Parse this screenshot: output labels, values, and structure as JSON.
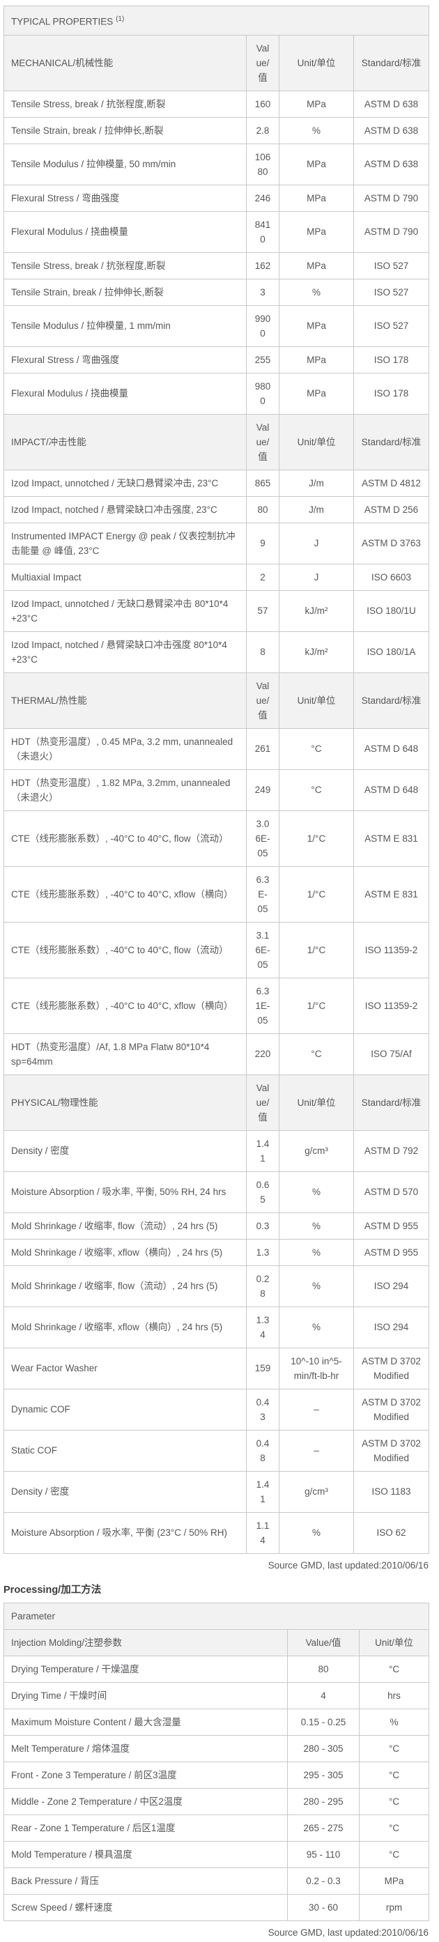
{
  "typical_properties": {
    "title": "TYPICAL PROPERTIES",
    "title_superscript": "(1)",
    "columns": [
      "Value/值",
      "Unit/单位",
      "Standard/标准"
    ],
    "sections": [
      {
        "name": "MECHANICAL/机械性能",
        "rows": [
          [
            "Tensile Stress, break / 抗张程度,断裂",
            "160",
            "MPa",
            "ASTM D 638"
          ],
          [
            "Tensile Strain, break / 拉伸伸长,断裂",
            "2.8",
            "%",
            "ASTM D 638"
          ],
          [
            "Tensile Modulus / 拉伸模量, 50 mm/min",
            "10680",
            "MPa",
            "ASTM D 638"
          ],
          [
            "Flexural Stress / 弯曲强度",
            "246",
            "MPa",
            "ASTM D 790"
          ],
          [
            "Flexural Modulus / 挠曲模量",
            "8410",
            "MPa",
            "ASTM D 790"
          ],
          [
            "Tensile Stress, break / 抗张程度,断裂",
            "162",
            "MPa",
            "ISO 527"
          ],
          [
            "Tensile Strain, break / 拉伸伸长,断裂",
            "3",
            "%",
            "ISO 527"
          ],
          [
            "Tensile Modulus / 拉伸模量, 1 mm/min",
            "9900",
            "MPa",
            "ISO 527"
          ],
          [
            "Flexural Stress / 弯曲强度",
            "255",
            "MPa",
            "ISO 178"
          ],
          [
            "Flexural Modulus / 挠曲模量",
            "9800",
            "MPa",
            "ISO 178"
          ]
        ]
      },
      {
        "name": "IMPACT/冲击性能",
        "rows": [
          [
            "Izod Impact, unnotched / 无缺口悬臂梁冲击, 23°C",
            "865",
            "J/m",
            "ASTM D 4812"
          ],
          [
            "Izod Impact, notched / 悬臂梁缺口冲击强度, 23°C",
            "80",
            "J/m",
            "ASTM D 256"
          ],
          [
            "Instrumented IMPACT Energy @ peak / 仪表控制抗冲击能量 @ 峰值, 23°C",
            "9",
            "J",
            "ASTM D 3763"
          ],
          [
            "Multiaxial Impact",
            "2",
            "J",
            "ISO 6603"
          ],
          [
            "Izod Impact, unnotched / 无缺口悬臂梁冲击 80*10*4 +23°C",
            "57",
            "kJ/m²",
            "ISO 180/1U"
          ],
          [
            "Izod Impact, notched / 悬臂梁缺口冲击强度 80*10*4 +23°C",
            "8",
            "kJ/m²",
            "ISO 180/1A"
          ]
        ]
      },
      {
        "name": "THERMAL/热性能",
        "rows": [
          [
            "HDT（热变形温度）, 0.45 MPa, 3.2 mm, unannealed（未退火）",
            "261",
            "°C",
            "ASTM D 648"
          ],
          [
            "HDT（热变形温度）, 1.82 MPa, 3.2mm, unannealed（未退火）",
            "249",
            "°C",
            "ASTM D 648"
          ],
          [
            "CTE（线形膨胀系数）, -40°C to 40°C, flow（流动）",
            "3.06E-05",
            "1/°C",
            "ASTM E 831"
          ],
          [
            "CTE（线形膨胀系数）, -40°C to 40°C, xflow（横向）",
            "6.3E-05",
            "1/°C",
            "ASTM E 831"
          ],
          [
            "CTE（线形膨胀系数）, -40°C to 40°C, flow（流动）",
            "3.16E-05",
            "1/°C",
            "ISO 11359-2"
          ],
          [
            "CTE（线形膨胀系数）, -40°C to 40°C, xflow（横向）",
            "6.31E-05",
            "1/°C",
            "ISO 11359-2"
          ],
          [
            "HDT（热变形温度）/Af, 1.8 MPa Flatw 80*10*4 sp=64mm",
            "220",
            "°C",
            "ISO 75/Af"
          ]
        ]
      },
      {
        "name": "PHYSICAL/物理性能",
        "rows": [
          [
            "Density / 密度",
            "1.41",
            "g/cm³",
            "ASTM D 792"
          ],
          [
            "Moisture Absorption / 吸水率, 平衡, 50% RH, 24 hrs",
            "0.65",
            "%",
            "ASTM D 570"
          ],
          [
            "Mold Shrinkage / 收缩率, flow（流动）, 24 hrs (5)",
            "0.3",
            "%",
            "ASTM D 955"
          ],
          [
            "Mold Shrinkage / 收缩率, xflow（横向）, 24 hrs (5)",
            "1.3",
            "%",
            "ASTM D 955"
          ],
          [
            "Mold Shrinkage / 收缩率, flow（流动）, 24 hrs (5)",
            "0.28",
            "%",
            "ISO 294"
          ],
          [
            "Mold Shrinkage / 收缩率, xflow（横向）, 24 hrs (5)",
            "1.34",
            "%",
            "ISO 294"
          ],
          [
            "Wear Factor Washer",
            "159",
            "10^-10 in^5-min/ft-lb-hr",
            "ASTM D 3702 Modified"
          ],
          [
            "Dynamic COF",
            "0.43",
            "–",
            "ASTM D 3702 Modified"
          ],
          [
            "Static COF",
            "0.48",
            "–",
            "ASTM D 3702 Modified"
          ],
          [
            "Density / 密度",
            "1.41",
            "g/cm³",
            "ISO 1183"
          ],
          [
            "Moisture Absorption / 吸水率, 平衡 (23°C / 50% RH)",
            "1.14",
            "%",
            "ISO 62"
          ]
        ]
      }
    ],
    "source_note": "Source GMD, last updated:2010/06/16"
  },
  "processing": {
    "heading": "Processing/加工方法",
    "table_title": "Parameter",
    "subheader": "Injection Molding/注塑参数",
    "columns": [
      "Value/值",
      "Unit/单位"
    ],
    "rows": [
      [
        "Drying Temperature / 干燥温度",
        "80",
        "°C"
      ],
      [
        "Drying Time / 干燥时间",
        "4",
        "hrs"
      ],
      [
        "Maximum Moisture Content / 最大含湿量",
        "0.15 - 0.25",
        "%"
      ],
      [
        "Melt Temperature / 熔体温度",
        "280 - 305",
        "°C"
      ],
      [
        "Front - Zone 3 Temperature / 前区3温度",
        "295 - 305",
        "°C"
      ],
      [
        "Middle - Zone 2 Temperature / 中区2温度",
        "280 - 295",
        "°C"
      ],
      [
        "Rear - Zone 1 Temperature / 后区1温度",
        "265 - 275",
        "°C"
      ],
      [
        "Mold Temperature / 模具温度",
        "95 - 110",
        "°C"
      ],
      [
        "Back Pressure / 背压",
        "0.2 - 0.3",
        "MPa"
      ],
      [
        "Screw Speed / 螺杆速度",
        "30 - 60",
        "rpm"
      ]
    ],
    "source_note": "Source GMD, last updated:2010/06/16"
  },
  "colors": {
    "header_bg": "#f2f2f2",
    "border_inner": "#c9c9c9",
    "border_outer": "#4d4d4d",
    "text": "#55565a"
  }
}
